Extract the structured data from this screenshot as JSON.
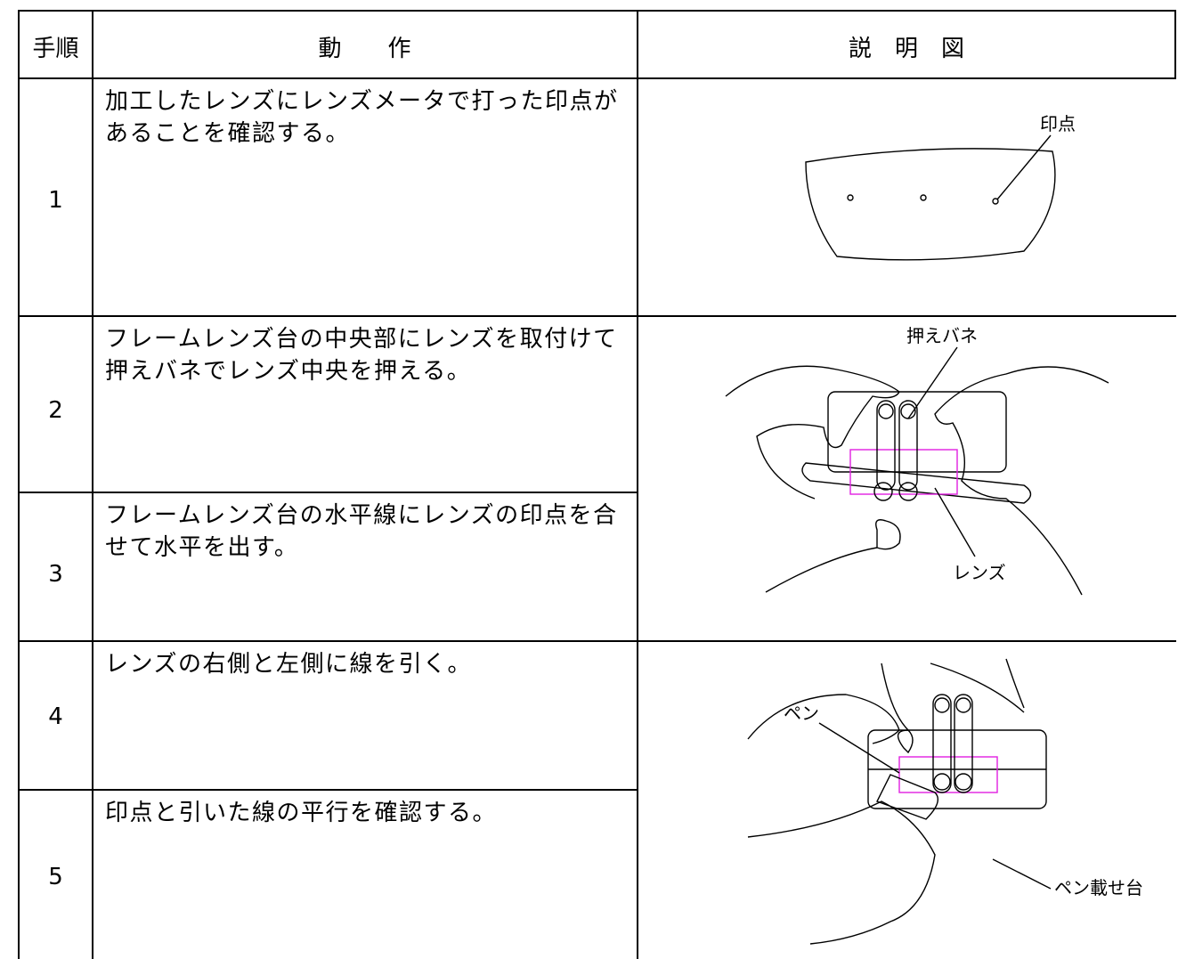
{
  "table": {
    "header": [
      "手順",
      "動　　作",
      "説　明　図"
    ],
    "rows": [
      [
        "1",
        "加工したレンズにレンズメータで打った印点があることを確認する。"
      ],
      [
        "2",
        "フレームレンズ台の中央部にレンズを取付けて押えバネでレンズ中央を押える。"
      ],
      [
        "3",
        "フレームレンズ台の水平線にレンズの印点を合せて水平を出す。"
      ],
      [
        "4",
        "レンズの右側と左側に線を引く。"
      ],
      [
        "5",
        "印点と引いた線の平行を確認する。"
      ]
    ]
  },
  "figures": [
    {
      "labels": [
        "印点"
      ]
    },
    {
      "labels": [
        "押えバネ",
        "レンズ"
      ]
    },
    {
      "labels": [
        "ペン",
        "ペン載せ台"
      ]
    }
  ]
}
